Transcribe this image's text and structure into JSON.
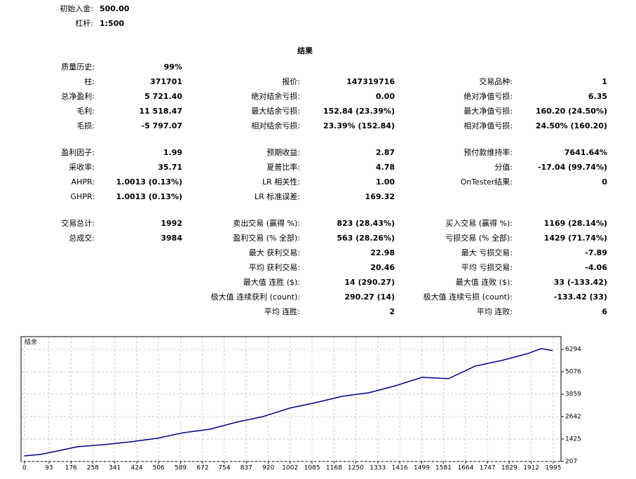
{
  "header": {
    "deposit": {
      "label": "初始入金:",
      "value": "500.00"
    },
    "leverage": {
      "label": "杠杆:",
      "value": "1:500"
    }
  },
  "title": "结果",
  "sections": [
    [
      [
        [
          "质量历史:",
          "99%"
        ],
        null,
        null
      ],
      [
        [
          "柱:",
          "371701"
        ],
        [
          "报价:",
          "147319716"
        ],
        [
          "交易品种:",
          "1"
        ]
      ],
      [
        [
          "总净盈利:",
          "5 721.40"
        ],
        [
          "绝对结余亏损:",
          "0.00"
        ],
        [
          "绝对净值亏损:",
          "6.35"
        ]
      ],
      [
        [
          "毛利:",
          "11 518.47"
        ],
        [
          "最大结余亏损:",
          "152.84 (23.39%)"
        ],
        [
          "最大净值亏损:",
          "160.20 (24.50%)"
        ]
      ],
      [
        [
          "毛损:",
          "-5 797.07"
        ],
        [
          "相对结余亏损:",
          "23.39% (152.84)"
        ],
        [
          "相对净值亏损:",
          "24.50% (160.20)"
        ]
      ]
    ],
    [
      [
        [
          "盈利因子:",
          "1.99"
        ],
        [
          "预期收益:",
          "2.87"
        ],
        [
          "预付款维持率:",
          "7641.64%"
        ]
      ],
      [
        [
          "采收率:",
          "35.71"
        ],
        [
          "夏普比率:",
          "4.78"
        ],
        [
          "分值:",
          "-17.04 (99.74%)"
        ]
      ],
      [
        [
          "AHPR:",
          "1.0013 (0.13%)"
        ],
        [
          "LR 相关性:",
          "1.00"
        ],
        [
          "OnTester结果:",
          "0"
        ]
      ],
      [
        [
          "GHPR:",
          "1.0013 (0.13%)"
        ],
        [
          "LR 标准误差:",
          "169.32"
        ],
        null
      ]
    ],
    [
      [
        [
          "交易总计:",
          "1992"
        ],
        [
          "卖出交易 (赢得 %):",
          "823 (28.43%)"
        ],
        [
          "买入交易 (赢得 %):",
          "1169 (28.14%)"
        ]
      ],
      [
        [
          "总成交:",
          "3984"
        ],
        [
          "盈利交易 (% 全部):",
          "563 (28.26%)"
        ],
        [
          "亏损交易 (% 全部):",
          "1429 (71.74%)"
        ]
      ],
      [
        null,
        [
          "最大 获利交易:",
          "22.98"
        ],
        [
          "最大 亏损交易:",
          "-7.89"
        ]
      ],
      [
        null,
        [
          "平均 获利交易:",
          "20.46"
        ],
        [
          "平均 亏损交易:",
          "-4.06"
        ]
      ],
      [
        null,
        [
          "最大值 连胜 ($):",
          "14 (290.27)"
        ],
        [
          "最大值 连败 ($):",
          "33 (-133.42)"
        ]
      ],
      [
        null,
        [
          "极大值 连续获利 (count):",
          "290.27 (14)"
        ],
        [
          "极大值 连续亏损 (count):",
          "-133.42 (33)"
        ]
      ],
      [
        null,
        [
          "平均 连胜:",
          "2"
        ],
        [
          "平均 连败:",
          "6"
        ]
      ]
    ]
  ],
  "chart_data": {
    "type": "line",
    "title": "结余",
    "color": "#00008b",
    "grid": true,
    "x": [
      0,
      60,
      100,
      150,
      200,
      300,
      400,
      500,
      600,
      700,
      800,
      900,
      1000,
      1100,
      1200,
      1300,
      1400,
      1500,
      1600,
      1700,
      1800,
      1900,
      1950,
      1992
    ],
    "values": [
      511,
      587,
      702,
      854,
      1006,
      1120,
      1272,
      1462,
      1767,
      1957,
      2337,
      2642,
      3098,
      3402,
      3745,
      3935,
      4315,
      4772,
      4700,
      5380,
      5685,
      6065,
      6332,
      6221
    ],
    "xlim": [
      -10,
      2024
    ],
    "ylim": [
      207,
      6941
    ],
    "xticks": [
      0,
      93,
      176,
      258,
      341,
      424,
      506,
      589,
      672,
      754,
      837,
      920,
      1002,
      1085,
      1168,
      1250,
      1333,
      1416,
      1499,
      1581,
      1664,
      1747,
      1829,
      1912,
      1995
    ],
    "yticks": [
      207,
      1425,
      2642,
      3859,
      5076,
      6294
    ]
  }
}
